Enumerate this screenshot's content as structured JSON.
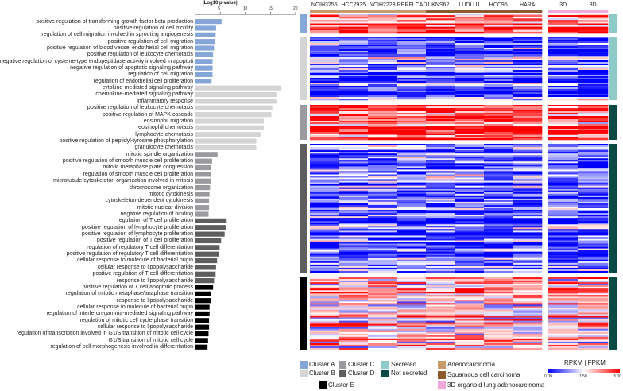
{
  "chart_data": [
    {
      "type": "bar",
      "orientation": "horizontal",
      "title": "|Log10 p-value|",
      "xlim": [
        0,
        20
      ],
      "xticks": [
        "5",
        "10",
        "15",
        "20"
      ],
      "clusters": [
        {
          "name": "Cluster A",
          "color": "#86a6d8",
          "terms": [
            [
              "positive regulation of transforming growth factor beta production",
              5.2
            ],
            [
              "positive regulation of cell motility",
              4.1
            ],
            [
              "regulation of cell migration involved in sprouting angiogenesis",
              4.0
            ],
            [
              "positive regulation of cell migration",
              3.8
            ],
            [
              "positive regulation of blood vessel endothelial cell migration",
              3.7
            ],
            [
              "positive regulation of leukocyte chemotaxis",
              3.5
            ],
            [
              "negative regulation of cysteine-type endopeptidase activity involved in apoptoti",
              3.4
            ],
            [
              "negative regulation of apoptotic signaling pathway",
              3.4
            ],
            [
              "regulation of cell migration",
              3.4
            ],
            [
              "regulation of endothelial cell proliferation",
              3.2
            ]
          ]
        },
        {
          "name": "Cluster B",
          "color": "#d4d4d4",
          "terms": [
            [
              "cytokine-mediated signaling pathway",
              17.1
            ],
            [
              "chemokine-mediated signaling pathway",
              16.1
            ],
            [
              "inflammatory response",
              16.1
            ],
            [
              "positive regulation of leukocyte chemotaxis",
              15.3
            ],
            [
              "positive regulation of MAPK cascade",
              15.1
            ],
            [
              "eosinophil migration",
              13.6
            ],
            [
              "eosinophil chemotaxis",
              13.6
            ],
            [
              "lymphocyte chemotaxis",
              13.1
            ],
            [
              "positive regulation of peptidyl-tyrosine phosphorylation",
              12.1
            ],
            [
              "granulocyte chemotaxis",
              12.1
            ]
          ]
        },
        {
          "name": "Cluster C",
          "color": "#9b9b9f",
          "terms": [
            [
              "mitotic spindle organization",
              4.4
            ],
            [
              "positive regulation of smooth muscle cell proliferation",
              3.3
            ],
            [
              "mitotic metaphase plate congression",
              3.1
            ],
            [
              "regulation of smooth muscle cell proliferation",
              3.1
            ],
            [
              "microtubule cytoskeleton organization involved in mitosis",
              3.1
            ],
            [
              "chromosome organization",
              2.9
            ],
            [
              "mitotic cytokinesis",
              2.8
            ],
            [
              "cytoskeleton-dependent cytokinesis",
              2.7
            ],
            [
              "mitotic nuclear division",
              2.7
            ],
            [
              "negative regulation of binding",
              2.6
            ]
          ]
        },
        {
          "name": "Cluster D",
          "color": "#5e5e5e",
          "terms": [
            [
              "regulation of T cell proliferation",
              6.2
            ],
            [
              "positive regulation of lymphocyte proliferation",
              6.0
            ],
            [
              "positive regulation of lymphocyte proliferation",
              5.8
            ],
            [
              "positive regulation of T cell proliferation",
              5.1
            ],
            [
              "regulation of regulatory T cell differentiation",
              4.8
            ],
            [
              "positive regulation of regulatory T cell differentiation",
              4.6
            ],
            [
              "cellular response to molecule of bacterial origin",
              4.3
            ],
            [
              "cellular response to lipopolysaccharide",
              4.1
            ],
            [
              "positive regulation of T cell differentiation",
              4.0
            ],
            [
              "response to lipopolysaccharide",
              3.7
            ]
          ]
        },
        {
          "name": "Cluster E",
          "color": "#000000",
          "terms": [
            [
              "positive regulation of T cell apoptotic process",
              3.5
            ],
            [
              "regulation of mitotic metaphase/anaphase transition",
              3.1
            ],
            [
              "response to lipopolysaccharide",
              3.0
            ],
            [
              "cellular response to molecule of bacterial origin",
              2.8
            ],
            [
              "regulation of interferon-gamma-mediated signaling pathway",
              2.8
            ],
            [
              "regulation of mitotic cell cycle phase transition",
              2.7
            ],
            [
              "cellular response to lipopolysaccharide",
              2.7
            ],
            [
              "regulation of transcription involved in G1/S transition of mitotic cell cycle",
              2.6
            ],
            [
              "G1/S transition of mitotic cell cycle",
              2.5
            ],
            [
              "regulation of cell morphogenesis involved in differentiation",
              2.4
            ]
          ]
        }
      ]
    },
    {
      "type": "heatmap",
      "columns": [
        "NCIH3255",
        "HCC2935",
        "NCIH2228",
        "RERFLCAD1",
        "KNS62",
        "LUDLU1",
        "HCC95",
        "HARA",
        "3D",
        "3D"
      ],
      "column_groups": [
        "Adenocarcinoma",
        "Adenocarcinoma",
        "Adenocarcinoma",
        "Adenocarcinoma",
        "Squamous cell carcinoma",
        "Squamous cell carcinoma",
        "Squamous cell carcinoma",
        "Squamous cell carcinoma",
        "3D organoid lung adenocarcinoma",
        "3D organoid lung adenocarcinoma"
      ],
      "row_clusters": [
        {
          "name": "Cluster A",
          "rows": 12,
          "secretion": "Secreted",
          "mean_level": 2.3
        },
        {
          "name": "Cluster B",
          "rows": 40,
          "secretion": "Secreted",
          "mean_level": 0.6
        },
        {
          "name": "Cluster C",
          "rows": 22,
          "secretion": "Not secreted",
          "mean_level": 2.6
        },
        {
          "name": "Cluster D",
          "rows": 80,
          "secretion": "Not secreted",
          "mean_level": 0.5
        },
        {
          "name": "Cluster E",
          "rows": 45,
          "secretion": "Not secreted",
          "mean_level": 1.9
        }
      ],
      "colorbar": {
        "title": "RPKM | FPKM",
        "min": "0.00",
        "mid": "1.50",
        "max": "3.00",
        "low_color": "#0000ff",
        "mid_color": "#ffffff",
        "high_color": "#ff0000"
      }
    }
  ],
  "legend": {
    "clusters": [
      {
        "label": "Cluster A",
        "color": "#86a6d8"
      },
      {
        "label": "Cluster B",
        "color": "#d4d4d4"
      },
      {
        "label": "Cluster C",
        "color": "#9b9b9f"
      },
      {
        "label": "Cluster D",
        "color": "#5e5e5e"
      },
      {
        "label": "Cluster E",
        "color": "#000000"
      }
    ],
    "secretion": [
      {
        "label": "Secreted",
        "color": "#8ecbc8"
      },
      {
        "label": "Not secreted",
        "color": "#0b4a44"
      }
    ],
    "tissue": [
      {
        "label": "Adenocarcinoma",
        "color": "#c99a6c"
      },
      {
        "label": "Squamous cell carcinoma",
        "color": "#8c5a2e"
      },
      {
        "label": "3D organoid lung adenocarcinoma",
        "color": "#f1a9dc"
      }
    ]
  }
}
